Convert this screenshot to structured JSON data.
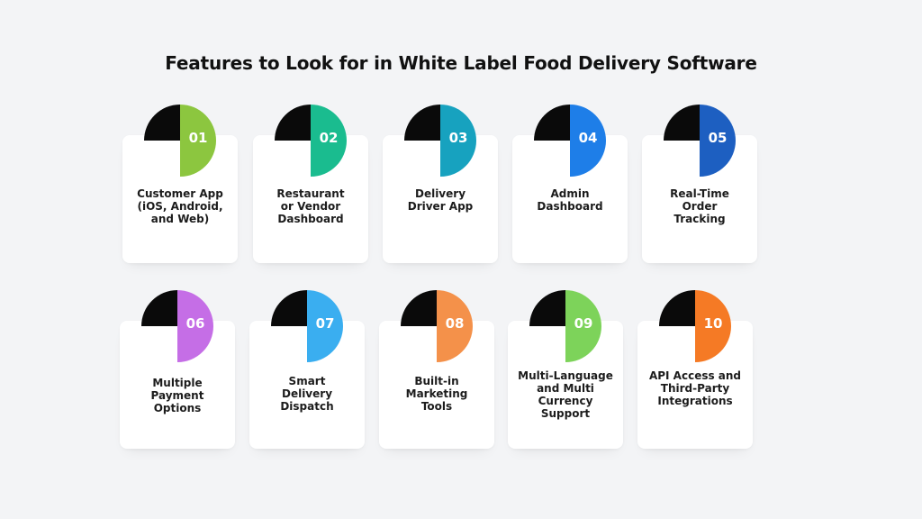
{
  "title": "Features to Look for in White Label Food Delivery Software",
  "features": [
    {
      "number": "01",
      "label": "Customer App\n(iOS, Android,\nand Web)",
      "color": "#8cc63f"
    },
    {
      "number": "02",
      "label": "Restaurant\nor Vendor\nDashboard",
      "color": "#1abc8f"
    },
    {
      "number": "03",
      "label": "Delivery\nDriver App",
      "color": "#17a2bf"
    },
    {
      "number": "04",
      "label": "Admin\nDashboard",
      "color": "#1e7ee8"
    },
    {
      "number": "05",
      "label": "Real-Time\nOrder\nTracking",
      "color": "#1d5fc1"
    },
    {
      "number": "06",
      "label": "Multiple\nPayment\nOptions",
      "color": "#c56ee6"
    },
    {
      "number": "07",
      "label": "Smart\nDelivery\nDispatch",
      "color": "#3aaef0"
    },
    {
      "number": "08",
      "label": "Built-in\nMarketing\nTools",
      "color": "#f4914a"
    },
    {
      "number": "09",
      "label": "Multi-Language\nand Multi\nCurrency Support",
      "color": "#7dd35a"
    },
    {
      "number": "10",
      "label": "API Access and\nThird-Party\nIntegrations",
      "color": "#f57a25"
    }
  ]
}
